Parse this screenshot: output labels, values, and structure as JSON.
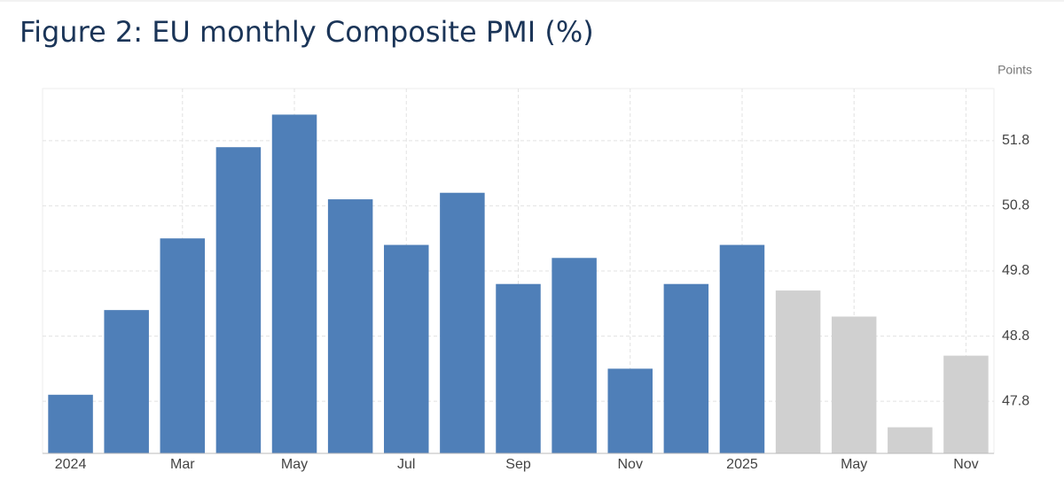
{
  "chart_data": {
    "type": "bar",
    "title": "Figure 2: EU monthly Composite PMI (%)",
    "y_unit_label": "Points",
    "categories": [
      "2024",
      null,
      "Mar",
      null,
      "May",
      null,
      "Jul",
      null,
      "Sep",
      null,
      "Nov",
      null,
      "2025",
      null,
      "May",
      null,
      "Nov"
    ],
    "values": [
      47.9,
      49.2,
      50.3,
      51.7,
      52.2,
      50.9,
      50.2,
      51.0,
      49.6,
      50.0,
      48.3,
      49.6,
      50.2,
      49.5,
      49.1,
      47.4,
      48.5
    ],
    "colors": [
      "#4f7fb8",
      "#4f7fb8",
      "#4f7fb8",
      "#4f7fb8",
      "#4f7fb8",
      "#4f7fb8",
      "#4f7fb8",
      "#4f7fb8",
      "#4f7fb8",
      "#4f7fb8",
      "#4f7fb8",
      "#4f7fb8",
      "#4f7fb8",
      "#d0d0d0",
      "#d0d0d0",
      "#d0d0d0",
      "#d0d0d0"
    ],
    "ylim": [
      47.0,
      52.6
    ],
    "yticks": [
      47.8,
      48.8,
      49.8,
      50.8,
      51.8
    ],
    "grid": true
  }
}
